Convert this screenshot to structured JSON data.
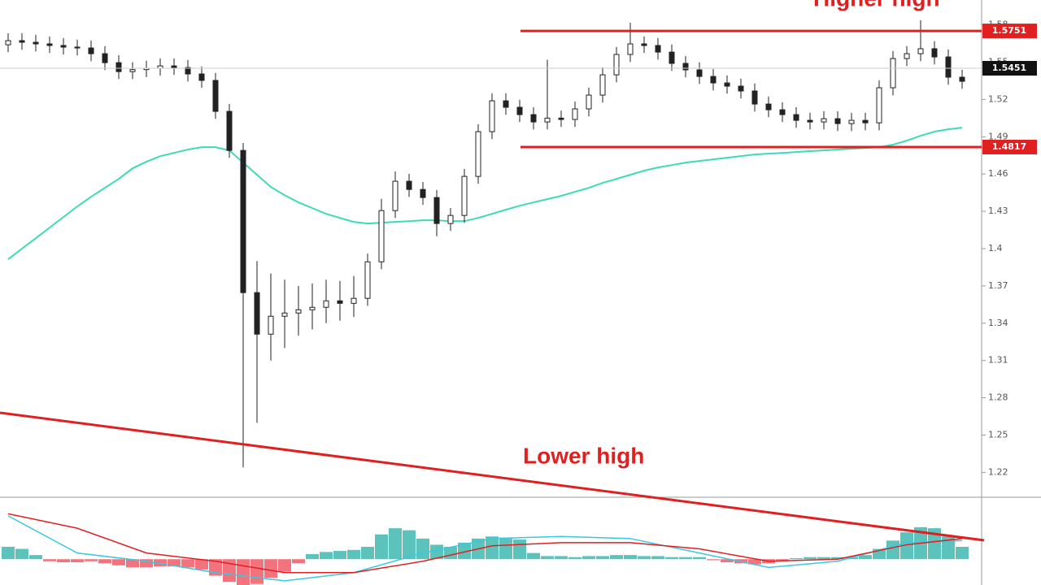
{
  "chart_data": {
    "type": "candlestick",
    "annotations": [
      "Higher high",
      "Lower high"
    ],
    "open": [
      1.564,
      1.5673,
      1.566,
      1.5647,
      1.5634,
      1.5621,
      1.5614,
      1.5568,
      1.5496,
      1.5424,
      1.544,
      1.5451,
      1.547,
      1.5457,
      1.5405,
      1.5353,
      1.5104,
      1.479,
      1.3646,
      1.3312,
      1.3456,
      1.3482,
      1.3508,
      1.3528,
      1.358,
      1.356,
      1.36,
      1.3894,
      1.4306,
      1.4542,
      1.4476,
      1.4411,
      1.4202,
      1.4267,
      1.4581,
      1.4941,
      1.5189,
      1.5137,
      1.5078,
      1.5019,
      1.505,
      1.5039,
      1.5124,
      1.5235,
      1.5398,
      1.5562,
      1.5647,
      1.5634,
      1.5581,
      1.549,
      1.5438,
      1.5385,
      1.5333,
      1.5307,
      1.5268,
      1.5163,
      1.5117,
      1.5078,
      1.5032,
      1.5019,
      1.5045,
      1.5006,
      1.5032,
      1.5012,
      1.5294,
      1.5529,
      1.5568,
      1.5608,
      1.5542,
      1.5379
    ],
    "high": [
      1.5733,
      1.5733,
      1.572,
      1.5707,
      1.5694,
      1.5681,
      1.5674,
      1.5628,
      1.5556,
      1.55,
      1.5511,
      1.553,
      1.553,
      1.5517,
      1.5465,
      1.5413,
      1.5164,
      1.485,
      1.39,
      1.38,
      1.375,
      1.37,
      1.372,
      1.375,
      1.374,
      1.378,
      1.396,
      1.44,
      1.462,
      1.4602,
      1.4536,
      1.4471,
      1.4327,
      1.4641,
      1.5001,
      1.5249,
      1.5249,
      1.5197,
      1.5138,
      1.552,
      1.511,
      1.5184,
      1.5295,
      1.5458,
      1.5622,
      1.5817,
      1.5707,
      1.5694,
      1.5641,
      1.555,
      1.5498,
      1.5445,
      1.5393,
      1.5367,
      1.5328,
      1.5223,
      1.5177,
      1.5138,
      1.5092,
      1.5105,
      1.5105,
      1.5092,
      1.5092,
      1.5354,
      1.5589,
      1.5628,
      1.5837,
      1.5668,
      1.5602,
      1.5439
    ],
    "low": [
      1.558,
      1.56,
      1.5587,
      1.5574,
      1.5561,
      1.5554,
      1.5508,
      1.5436,
      1.5364,
      1.5364,
      1.538,
      1.5391,
      1.5397,
      1.5345,
      1.5293,
      1.5044,
      1.473,
      1.224,
      1.2599,
      1.31,
      1.32,
      1.33,
      1.335,
      1.34,
      1.342,
      1.345,
      1.354,
      1.3834,
      1.4246,
      1.4416,
      1.4351,
      1.41,
      1.4142,
      1.4207,
      1.4521,
      1.4881,
      1.5077,
      1.5018,
      1.4959,
      1.4959,
      1.4979,
      1.4979,
      1.5064,
      1.5175,
      1.5338,
      1.5502,
      1.5574,
      1.5521,
      1.543,
      1.5378,
      1.5325,
      1.5273,
      1.5247,
      1.5208,
      1.5103,
      1.5057,
      1.5018,
      1.4972,
      1.4959,
      1.4959,
      1.4946,
      1.4946,
      1.4952,
      1.4952,
      1.5234,
      1.5469,
      1.5508,
      1.5482,
      1.5319,
      1.5286
    ],
    "close": [
      1.5673,
      1.566,
      1.5647,
      1.5634,
      1.5621,
      1.5614,
      1.5568,
      1.5496,
      1.5424,
      1.544,
      1.5451,
      1.547,
      1.5457,
      1.5405,
      1.5353,
      1.5104,
      1.479,
      1.3646,
      1.3312,
      1.3456,
      1.3482,
      1.3508,
      1.3528,
      1.358,
      1.356,
      1.36,
      1.3894,
      1.4306,
      1.4542,
      1.4476,
      1.4411,
      1.4202,
      1.4267,
      1.4581,
      1.4941,
      1.5189,
      1.5137,
      1.5078,
      1.5019,
      1.505,
      1.5039,
      1.5124,
      1.5235,
      1.5398,
      1.5562,
      1.5647,
      1.5634,
      1.5581,
      1.549,
      1.5438,
      1.5385,
      1.5333,
      1.5307,
      1.5268,
      1.5163,
      1.5117,
      1.5078,
      1.5032,
      1.5019,
      1.5045,
      1.5006,
      1.5032,
      1.5012,
      1.5294,
      1.5529,
      1.5568,
      1.5608,
      1.5542,
      1.5379,
      1.5346
    ],
    "ma": {
      "color": "#3ddbb4",
      "values": [
        1.3914,
        1.4,
        1.4084,
        1.4169,
        1.4254,
        1.4339,
        1.4417,
        1.4489,
        1.4561,
        1.4646,
        1.4699,
        1.4744,
        1.477,
        1.4797,
        1.4816,
        1.4816,
        1.479,
        1.4692,
        1.4594,
        1.4496,
        1.443,
        1.4372,
        1.4326,
        1.428,
        1.4247,
        1.4215,
        1.4202,
        1.4208,
        1.4215,
        1.4221,
        1.4228,
        1.4228,
        1.4221,
        1.4221,
        1.4247,
        1.428,
        1.4313,
        1.4345,
        1.4372,
        1.4398,
        1.4424,
        1.4457,
        1.4489,
        1.4529,
        1.4561,
        1.4594,
        1.4627,
        1.4653,
        1.4672,
        1.4692,
        1.4705,
        1.4718,
        1.4731,
        1.4744,
        1.4757,
        1.4764,
        1.477,
        1.4777,
        1.4784,
        1.479,
        1.4797,
        1.4803,
        1.481,
        1.4816,
        1.4836,
        1.4869,
        1.4908,
        1.4941,
        1.496,
        1.4973
      ]
    },
    "levels": [
      {
        "value": 1.5751,
        "color": "#e02020"
      },
      {
        "value": 1.5451,
        "color": "#111111"
      },
      {
        "value": 1.4817,
        "color": "#e02020"
      }
    ],
    "ylim": [
      1.2,
      1.6
    ],
    "yticks": [
      1.22,
      1.25,
      1.28,
      1.31,
      1.34,
      1.37,
      1.4,
      1.43,
      1.46,
      1.49,
      1.52,
      1.55,
      1.58
    ],
    "macd": {
      "ylim": [
        -0.0025,
        0.006
      ],
      "histogram": [
        0.0012,
        0.001,
        0.0004,
        -0.0002,
        -0.0003,
        -0.0003,
        -0.0002,
        -0.0004,
        -0.0006,
        -0.0008,
        -0.0008,
        -0.0007,
        -0.0007,
        -0.0008,
        -0.001,
        -0.0016,
        -0.0022,
        -0.0026,
        -0.0024,
        -0.0018,
        -0.0012,
        -0.0004,
        0.0005,
        0.0007,
        0.0008,
        0.0009,
        0.0012,
        0.0024,
        0.003,
        0.0028,
        0.002,
        0.0014,
        0.0012,
        0.0016,
        0.002,
        0.0022,
        0.0021,
        0.0019,
        0.0006,
        0.0003,
        0.0003,
        0.0002,
        0.0003,
        0.0003,
        0.0004,
        0.0004,
        0.0003,
        0.0003,
        0.0002,
        0.0002,
        0.0002,
        -0.0001,
        -0.0003,
        -0.0004,
        -0.0005,
        -0.0004,
        -0.0001,
        0.0001,
        0.0002,
        0.0002,
        0.0002,
        0.0002,
        0.0004,
        0.001,
        0.0018,
        0.0026,
        0.0031,
        0.003,
        0.0022,
        0.0012
      ],
      "up_color": "#3fb8b0",
      "down_color": "#f05a66",
      "x": [
        0,
        5,
        10,
        15,
        20,
        25,
        30,
        35,
        40,
        45,
        50,
        55,
        60,
        65,
        69
      ],
      "series": [
        {
          "color": "#38c8e0",
          "values": [
            0.0042,
            0.0006,
            -0.0002,
            -0.0013,
            -0.0021,
            -0.0013,
            0.0006,
            0.002,
            0.0022,
            0.002,
            0.0006,
            -0.0008,
            -0.0002,
            0.0016,
            0.0018
          ]
        },
        {
          "color": "#e02020",
          "values": [
            0.0044,
            0.003,
            0.0006,
            -0.0002,
            -0.0013,
            -0.0013,
            -0.0002,
            0.0013,
            0.0016,
            0.0016,
            0.001,
            -0.0002,
            0.0,
            0.0014,
            0.002
          ]
        }
      ]
    }
  }
}
